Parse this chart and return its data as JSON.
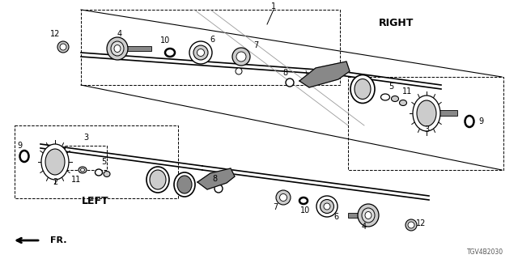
{
  "diagram_id": "TGV4B2030",
  "bg": "#ffffff",
  "lc": "#000000",
  "gray1": "#cccccc",
  "gray2": "#888888",
  "gray3": "#444444",
  "fig_width": 6.4,
  "fig_height": 3.2,
  "dpi": 100,
  "right_label": "RIGHT",
  "left_label": "LEFT",
  "fr_label": "FR."
}
